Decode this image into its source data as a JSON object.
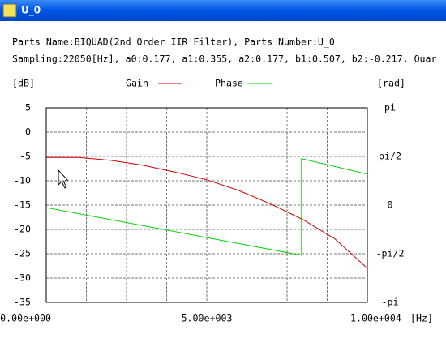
{
  "window": {
    "title": "U_0"
  },
  "info": {
    "line1": "Parts Name:BIQUAD(2nd Order IIR Filter), Parts Number:U_0",
    "line2": "Sampling:22050[Hz], a0:0.177, a1:0.355, a2:0.177, b1:0.507, b2:-0.217, Quar"
  },
  "chart_data": {
    "type": "line",
    "ylabel": "[dB]",
    "y2label": "[rad]",
    "xlabel": "[Hz]",
    "xlim": [
      0,
      10000
    ],
    "xticks": [
      {
        "value": 0,
        "label": "0.00e+000"
      },
      {
        "value": 5000,
        "label": "5.00e+003"
      },
      {
        "value": 10000,
        "label": "1.00e+004"
      }
    ],
    "xgrid": [
      1250,
      2500,
      3750,
      5000,
      6250,
      7500,
      8750
    ],
    "ylim": [
      -35,
      5
    ],
    "yticks": [
      5,
      0,
      -5,
      -10,
      -15,
      -20,
      -25,
      -30,
      -35
    ],
    "y2lim": [
      -3.14159,
      3.14159
    ],
    "y2ticks": [
      {
        "value": 3.14159,
        "label": "pi"
      },
      {
        "value": 1.5708,
        "label": "pi/2"
      },
      {
        "value": 0,
        "label": "0"
      },
      {
        "value": -1.5708,
        "label": "-pi/2"
      },
      {
        "value": -3.14159,
        "label": "-pi"
      }
    ],
    "grid": true,
    "series": [
      {
        "name": "Gain",
        "color": "#cc0000",
        "x": [
          0,
          1000,
          2000,
          3000,
          4000,
          5000,
          6000,
          7000,
          8000,
          9000,
          10000
        ],
        "values": [
          -5.2,
          -5.2,
          -5.8,
          -6.8,
          -8.2,
          -9.8,
          -12,
          -14.8,
          -18,
          -22,
          -28
        ]
      },
      {
        "name": "Phase",
        "color": "#00cc00",
        "axis": "y2",
        "x": [
          0,
          7950,
          7950,
          10000
        ],
        "values": [
          -0.08,
          -1.62,
          1.5,
          1.0
        ]
      }
    ]
  }
}
